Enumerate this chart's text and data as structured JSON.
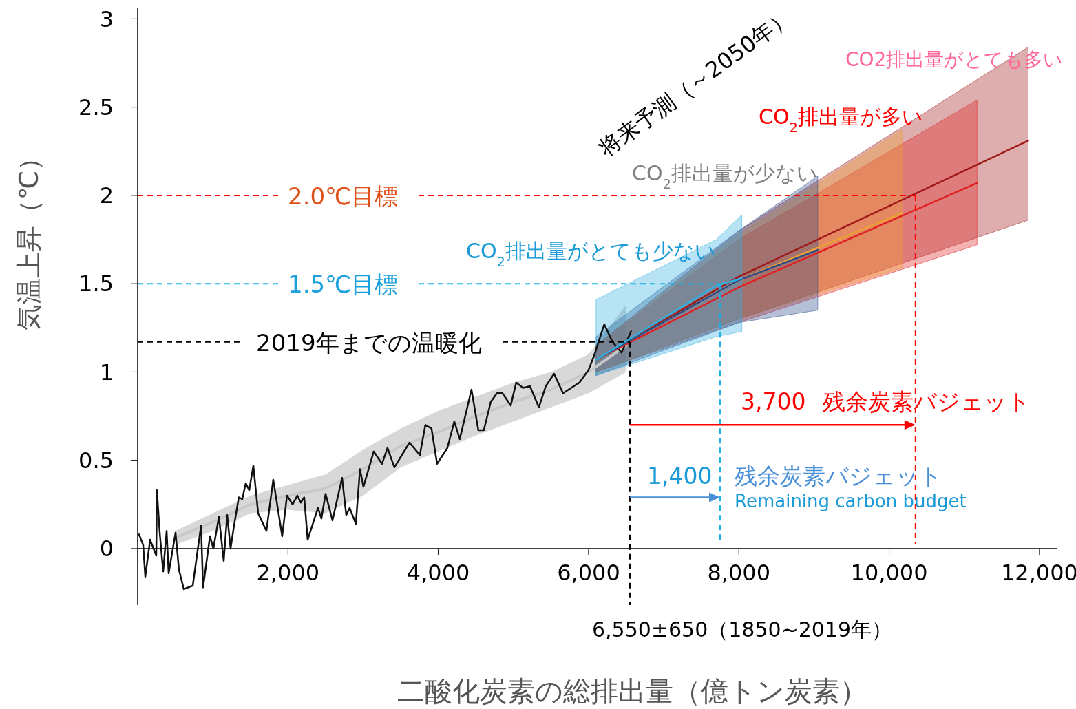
{
  "chart_data": {
    "type": "line",
    "xlabel": "二酸化炭素の総排出量（億トン炭素）",
    "ylabel": "気温上昇（℃）",
    "xlim": [
      0,
      12230
    ],
    "ylim": [
      -0.32,
      3.06
    ],
    "xticks": [
      {
        "value": 2000,
        "label": "2,000"
      },
      {
        "value": 4000,
        "label": "4,000"
      },
      {
        "value": 6000,
        "label": "6,000"
      },
      {
        "value": 8000,
        "label": "8,000"
      },
      {
        "value": 10000,
        "label": "10,000"
      },
      {
        "value": 12000,
        "label": "12,000"
      }
    ],
    "yticks": [
      0,
      0.5,
      1,
      1.5,
      2,
      2.5,
      3
    ],
    "series": [
      {
        "color": "#c8c8c8",
        "x": [
          500,
          1000,
          1500,
          2000,
          2500,
          3000,
          3500,
          4000,
          4500,
          5000,
          5500,
          6000,
          6500
        ],
        "values": [
          0.06,
          0.15,
          0.25,
          0.3,
          0.34,
          0.45,
          0.58,
          0.66,
          0.75,
          0.83,
          0.9,
          1.0,
          1.15
        ],
        "lower": [
          0.02,
          0.1,
          0.2,
          0.22,
          0.2,
          0.3,
          0.46,
          0.55,
          0.64,
          0.72,
          0.8,
          0.88,
          1.0
        ],
        "upper": [
          0.1,
          0.2,
          0.3,
          0.36,
          0.42,
          0.56,
          0.68,
          0.78,
          0.86,
          0.94,
          1.0,
          1.1,
          1.38
        ]
      },
      {
        "color": "#111111",
        "x": [
          18,
          73,
          101,
          165,
          247,
          256,
          293,
          339,
          385,
          412,
          504,
          549,
          614,
          733,
          843,
          870,
          962,
          1007,
          1081,
          1145,
          1191,
          1236,
          1282,
          1346,
          1392,
          1438,
          1484,
          1539,
          1603,
          1713,
          1804,
          1923,
          1987,
          2061,
          2125,
          2170,
          2216,
          2262,
          2399,
          2445,
          2500,
          2592,
          2720,
          2775,
          2821,
          2903,
          2958,
          3004,
          3141,
          3251,
          3324,
          3416,
          3617,
          3755,
          3828,
          3910,
          3984,
          4121,
          4213,
          4286,
          4442,
          4533,
          4606,
          4698,
          4780,
          4854,
          4964,
          5037,
          5128,
          5220,
          5339,
          5431,
          5541,
          5660,
          5879,
          5998,
          6072,
          6209,
          6319,
          6438,
          6566
        ],
        "values": [
          0.08,
          0.02,
          -0.16,
          0.05,
          -0.04,
          0.33,
          0.09,
          -0.13,
          0.1,
          -0.14,
          0.09,
          -0.12,
          -0.23,
          -0.21,
          0.13,
          -0.22,
          0.07,
          0,
          0.18,
          -0.07,
          0.19,
          0,
          0.13,
          0.29,
          0.28,
          0.37,
          0.33,
          0.47,
          0.2,
          0.1,
          0.39,
          0.07,
          0.3,
          0.25,
          0.3,
          0.26,
          0.29,
          0.05,
          0.23,
          0.17,
          0.31,
          0.16,
          0.4,
          0.19,
          0.23,
          0.14,
          0.45,
          0.35,
          0.55,
          0.48,
          0.57,
          0.46,
          0.6,
          0.53,
          0.7,
          0.68,
          0.48,
          0.57,
          0.72,
          0.62,
          0.9,
          0.67,
          0.67,
          0.83,
          0.88,
          0.88,
          0.81,
          0.94,
          0.91,
          0.92,
          0.8,
          0.92,
          0.99,
          0.88,
          0.94,
          1.01,
          1.09,
          1.27,
          1.17,
          1.11,
          1.23
        ]
      },
      {
        "color": "#a01818",
        "x": [
          6100,
          8000,
          11850
        ],
        "values": [
          1.07,
          1.54,
          2.31
        ],
        "lower": [
          1.0,
          1.3,
          1.86
        ],
        "upper": [
          1.15,
          1.8,
          2.84
        ]
      },
      {
        "color": "#e02020",
        "x": [
          6100,
          8000,
          11170
        ],
        "values": [
          1.07,
          1.48,
          2.07
        ],
        "lower": [
          1.0,
          1.28,
          1.72
        ],
        "upper": [
          1.15,
          1.75,
          2.54
        ]
      },
      {
        "color": "#f0a030",
        "x": [
          6100,
          8000,
          10170
        ],
        "values": [
          1.07,
          1.52,
          1.9
        ],
        "lower": [
          1.0,
          1.3,
          1.59
        ],
        "upper": [
          1.15,
          1.78,
          2.37
        ]
      },
      {
        "color": "#2a4a8a",
        "x": [
          6100,
          8000,
          9050
        ],
        "values": [
          1.07,
          1.52,
          1.69
        ],
        "lower": [
          0.98,
          1.28,
          1.35
        ],
        "upper": [
          1.2,
          1.8,
          2.11
        ]
      },
      {
        "color": "#30b0e0",
        "x": [
          6100,
          7700,
          8040
        ],
        "values": [
          1.07,
          1.49,
          1.53
        ],
        "lower": [
          0.98,
          1.2,
          1.23
        ],
        "upper": [
          1.41,
          1.75,
          1.89
        ]
      }
    ],
    "ref_lines": [
      {
        "axis": "y",
        "value": 1.17,
        "label": "2019年までの温暖化",
        "color": "#000000",
        "line_style": "dashed"
      },
      {
        "axis": "y",
        "value": 1.5,
        "label": "1.5℃目標",
        "color": "#1ab0e8",
        "line_style": "dashed"
      },
      {
        "axis": "y",
        "value": 2,
        "label": "2.0℃目標",
        "color": "#ff0000",
        "line_style": "dashed"
      },
      {
        "axis": "x",
        "value": 6550,
        "label": "6,550±650（1850~2019年）",
        "color": "#000000",
        "line_style": "dashed"
      },
      {
        "axis": "x",
        "value": 7750,
        "color": "#1ab0e8",
        "line_style": "dashed"
      },
      {
        "axis": "x",
        "value": 10350,
        "color": "#ff0000",
        "line_style": "dashed"
      }
    ],
    "annotations": [
      "将来予測（～2050年）",
      "CO2排出量がとても多い",
      "CO$_{2}$排出量が多い",
      "CO$_{2}$排出量が少ない",
      "CO$_{2}$排出量がとても少ない",
      "3,700",
      {
        "text": "残余炭素バジェット",
        "x": 10350,
        "y": 0.7
      },
      "1,400",
      {
        "text": "残余炭素バジェット",
        "x": 7750,
        "y": 0.29
      },
      "Remaining carbon budget"
    ]
  }
}
